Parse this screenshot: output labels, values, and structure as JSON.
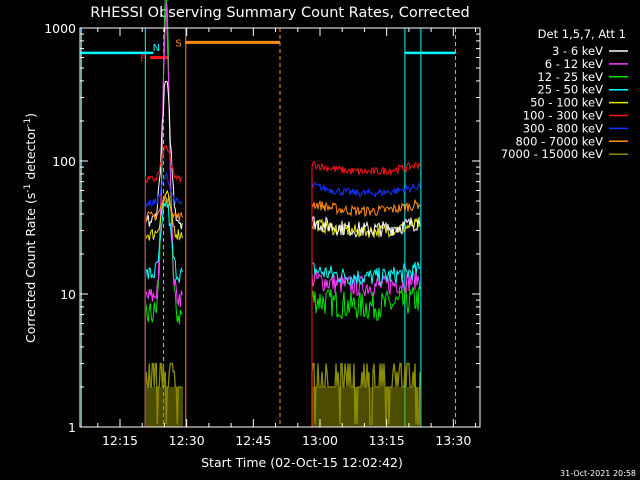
{
  "chart_data": {
    "type": "line",
    "title": "RHESSI Observing Summary Count Rates, Corrected",
    "xlabel": "Start Time (02-Oct-15 12:02:42)",
    "ylabel_main": "Corrected Count Rate (s",
    "ylabel_sup1": "-1",
    "ylabel_mid": " detector",
    "ylabel_sup2": "-1",
    "ylabel_end": ")",
    "yscale": "log",
    "ylim": [
      1,
      1000
    ],
    "xlim_min": [
      6,
      96
    ],
    "y_ticks": [
      {
        "v": 1,
        "label": "1"
      },
      {
        "v": 10,
        "label": "10"
      },
      {
        "v": 100,
        "label": "100"
      },
      {
        "v": 1000,
        "label": "1000"
      }
    ],
    "x_ticks": [
      {
        "v": 15,
        "label": "12:15"
      },
      {
        "v": 30,
        "label": "12:30"
      },
      {
        "v": 45,
        "label": "12:45"
      },
      {
        "v": 60,
        "label": "13:00"
      },
      {
        "v": 75,
        "label": "13:15"
      },
      {
        "v": 90,
        "label": "13:30"
      }
    ],
    "legend_title": "Det 1,5,7, Att 1",
    "legend_position": "right",
    "footer": "31-Oct-2021 20:58",
    "series": [
      {
        "name": "3 - 6 keV",
        "color": "#ffffff"
      },
      {
        "name": "6 - 12 keV",
        "color": "#ff3cff"
      },
      {
        "name": "12 - 25 keV",
        "color": "#00e600"
      },
      {
        "name": "25 - 50 keV",
        "color": "#00ffff"
      },
      {
        "name": "50 - 100 keV",
        "color": "#e6e600"
      },
      {
        "name": "100 - 300 keV",
        "color": "#ff1414"
      },
      {
        "name": "300 - 800 keV",
        "color": "#1432ff"
      },
      {
        "name": "800 - 7000 keV",
        "color": "#ff8c14"
      },
      {
        "name": "7000 - 15000 keV",
        "color": "#8c8c00"
      }
    ],
    "segments": [
      {
        "t0": 20.7,
        "t1": 29.2,
        "levels": [
          35,
          9.5,
          7.0,
          14,
          28,
          72,
          48,
          38,
          2.0
        ],
        "flare": true
      },
      {
        "t0": 58.2,
        "t1": 82.7,
        "levels": [
          32,
          12,
          8.5,
          14,
          31,
          87,
          60,
          44,
          2.0
        ],
        "flare": false
      }
    ],
    "flags": [
      {
        "label": "F",
        "color": "#ff1414",
        "t0": 21.8,
        "t1": 26.0,
        "level": 600
      },
      {
        "label": "N",
        "color": "#00ffff",
        "t0": 21.0,
        "t1": 25.0,
        "level": 720
      },
      {
        "label": "S",
        "color": "#ff8c14",
        "t0": 29.7,
        "t1": 51.0,
        "level": 780
      }
    ],
    "saa_bars": [
      {
        "t0": 6.0,
        "t1": 22.5,
        "level": 650
      },
      {
        "t0": 79.0,
        "t1": 90.5,
        "level": 650
      }
    ],
    "vlines": [
      {
        "t": 6.3,
        "color": "#00ffff",
        "dash": false
      },
      {
        "t": 20.7,
        "color": "#00ffff",
        "dash": false
      },
      {
        "t": 24.8,
        "color": "#00ffff",
        "dash": true
      },
      {
        "t": 29.8,
        "color": "#ff8c14",
        "dash": false
      },
      {
        "t": 51.0,
        "color": "#ff8c14",
        "dash": true
      },
      {
        "t": 79.1,
        "color": "#00ffff",
        "dash": false
      },
      {
        "t": 82.7,
        "color": "#00ffff",
        "dash": false
      },
      {
        "t": 90.5,
        "color": "#00ffff",
        "dash": true
      }
    ]
  }
}
